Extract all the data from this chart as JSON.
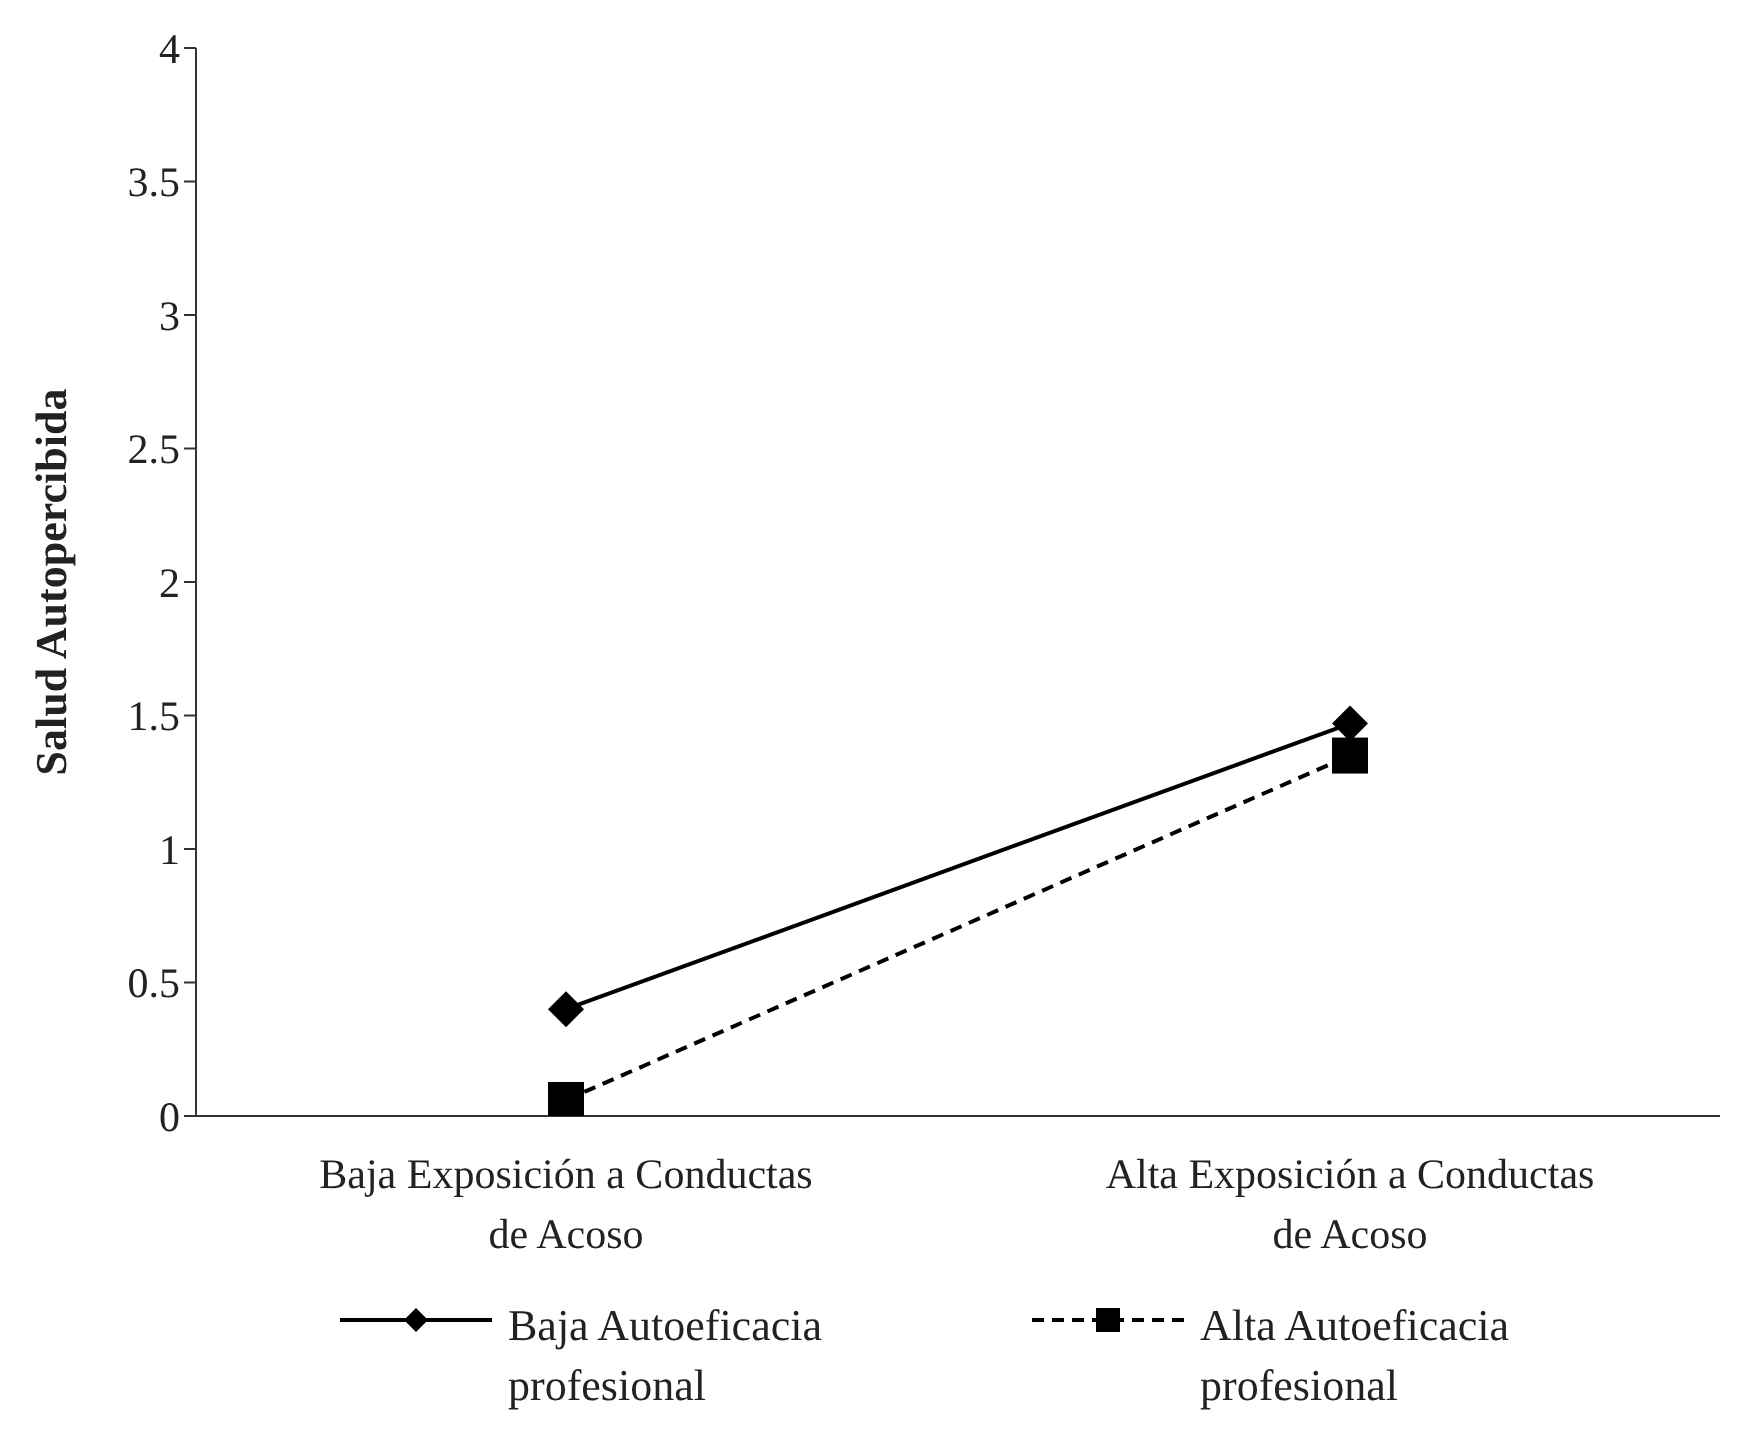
{
  "chart_data": {
    "type": "line",
    "ylabel": "Salud Autopercibida",
    "categories": [
      "Baja Exposición a Conductas de Acoso",
      "Alta Exposición a Conductas de Acoso"
    ],
    "series": [
      {
        "name": "Baja Autoeficacia profesional",
        "color": "#000000",
        "values": [
          0.4,
          1.47
        ],
        "marker": "diamond",
        "line_style": "solid"
      },
      {
        "name": "Alta Autoeficacia profesional",
        "color": "#000000",
        "values": [
          0.06,
          1.35
        ],
        "marker": "square",
        "line_style": "dashed"
      }
    ],
    "ylim": [
      0,
      4
    ],
    "yticks": [
      0,
      0.5,
      1,
      1.5,
      2,
      2.5,
      3,
      3.5,
      4
    ],
    "grid": false,
    "legend": "bottom"
  }
}
